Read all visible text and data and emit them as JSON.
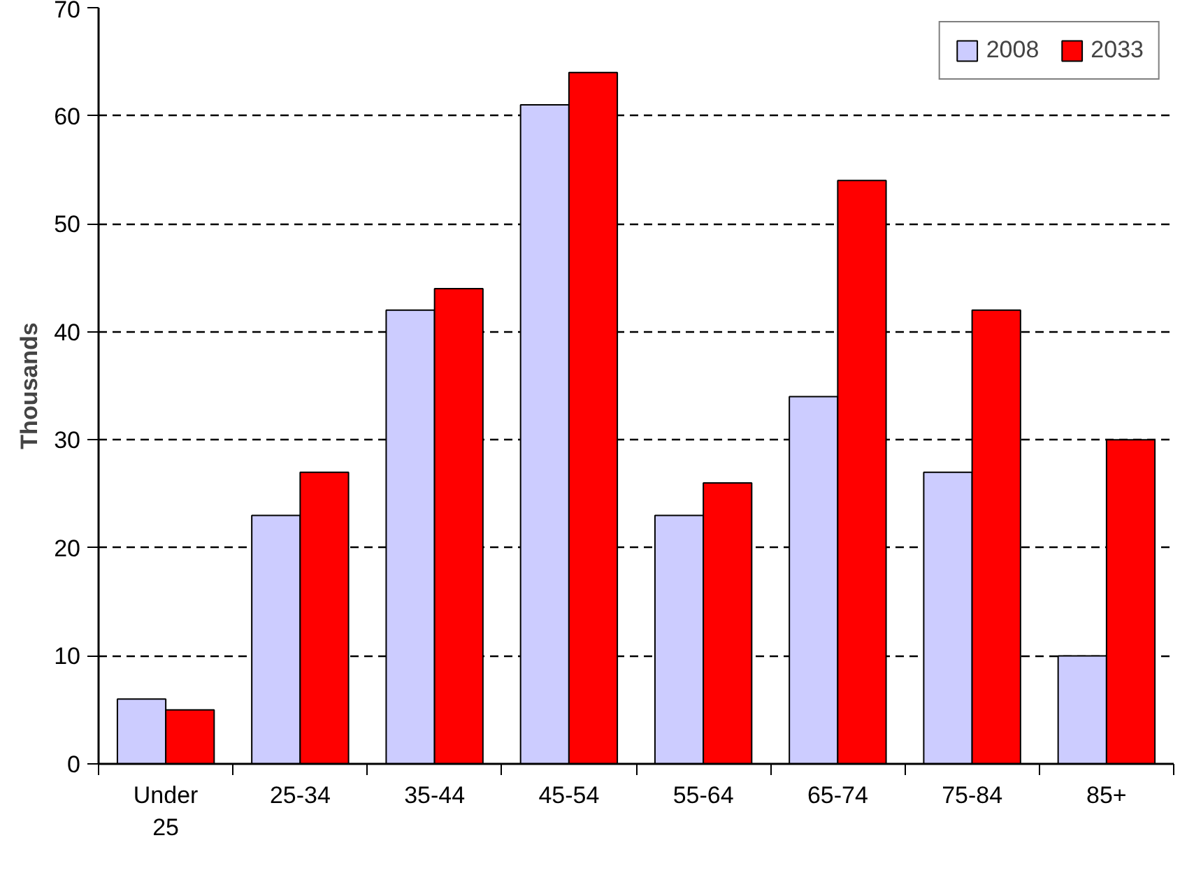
{
  "chart_data": {
    "type": "bar",
    "ylabel": "Thousands",
    "categories": [
      "Under\n25",
      "25-34",
      "35-44",
      "45-54",
      "55-64",
      "65-74",
      "75-84",
      "85+"
    ],
    "series": [
      {
        "name": "2008",
        "color": "#ccccff",
        "values": [
          6,
          23,
          42,
          61,
          23,
          34,
          27,
          10
        ]
      },
      {
        "name": "2033",
        "color": "#ff0000",
        "values": [
          5,
          27,
          44,
          64,
          26,
          54,
          42,
          30
        ]
      }
    ],
    "ylim": [
      0,
      70
    ],
    "yticks": [
      0,
      10,
      20,
      30,
      40,
      50,
      60,
      70
    ],
    "grid": "y",
    "legend": "top right"
  }
}
